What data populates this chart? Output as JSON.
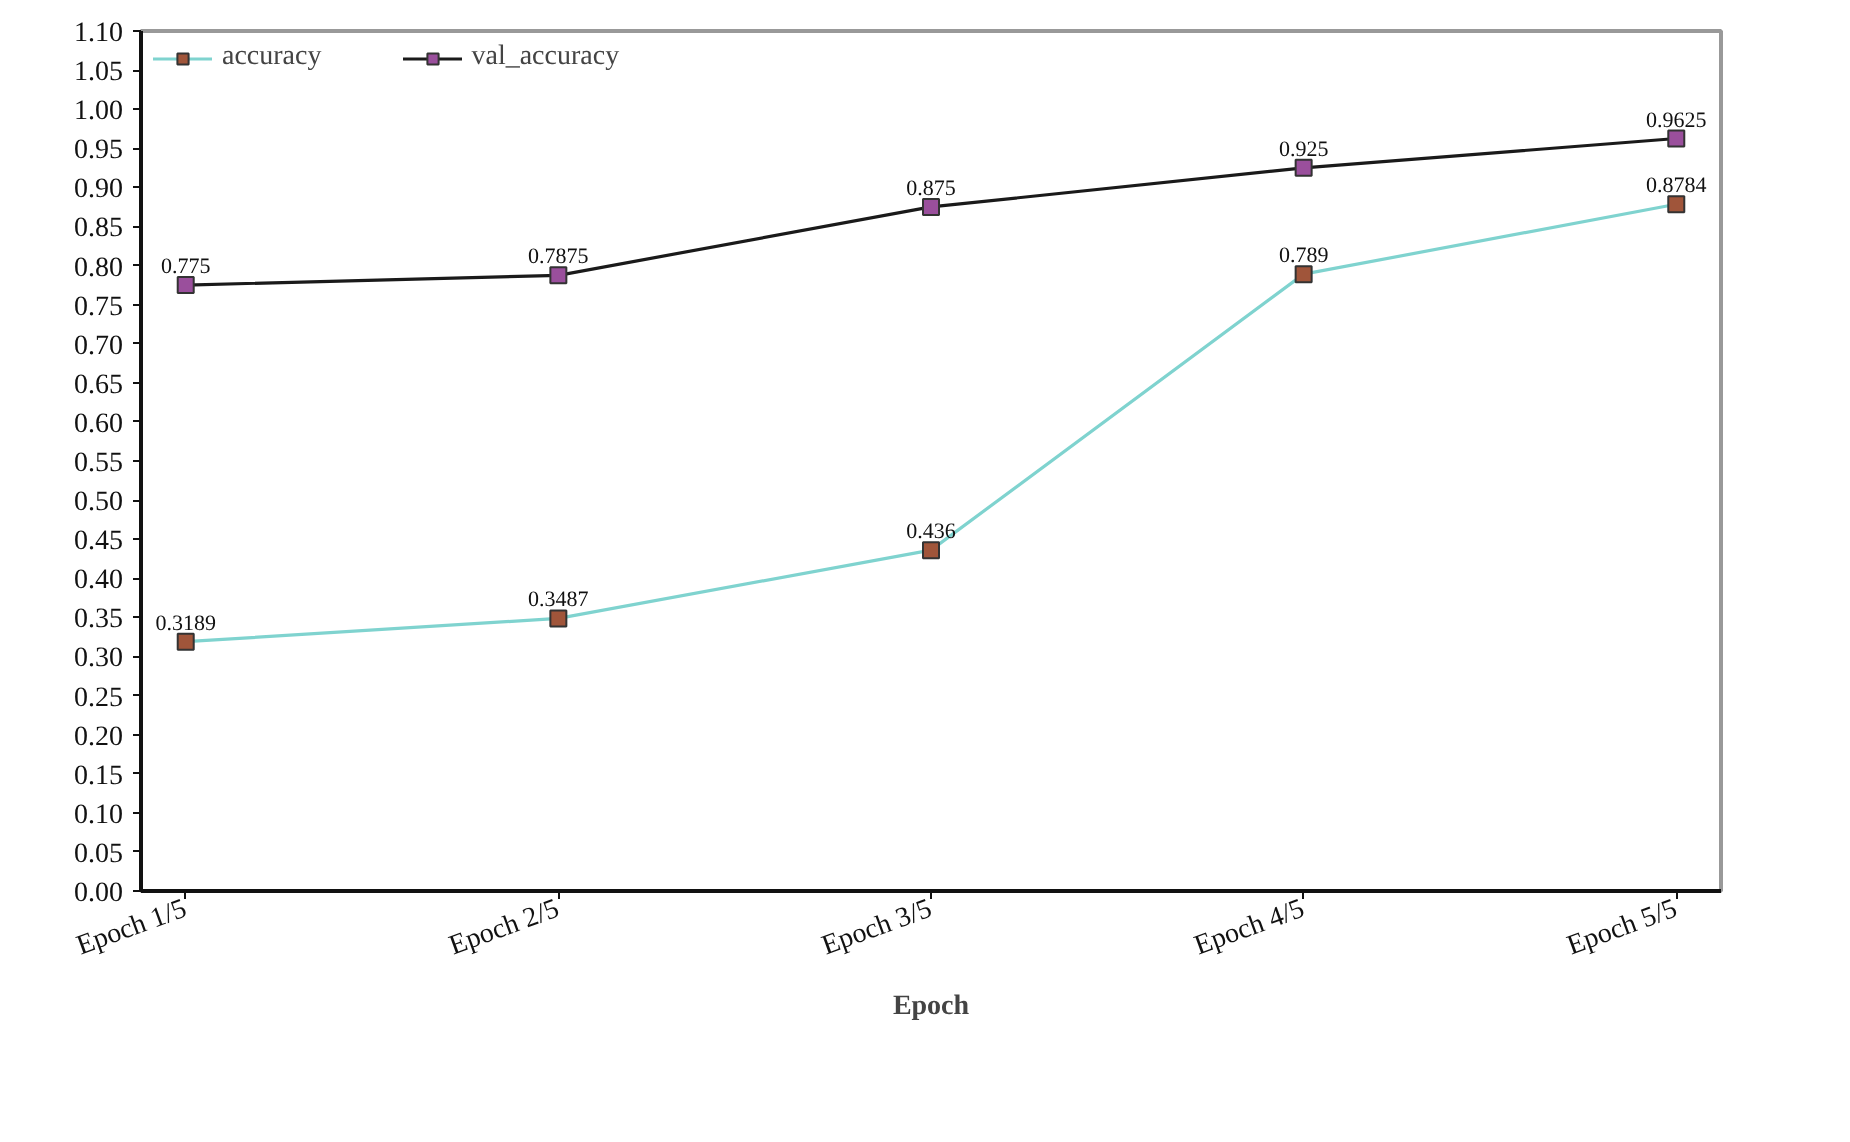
{
  "chart_data": {
    "type": "line",
    "xlabel": "Epoch",
    "categories": [
      "Epoch 1/5",
      "Epoch 2/5",
      "Epoch 3/5",
      "Epoch 4/5",
      "Epoch 5/5"
    ],
    "series": [
      {
        "name": "accuracy",
        "color": "#7fd3cf",
        "colors": [
          "#a0553a",
          "#a0553a",
          "#a0553a",
          "#a0553a",
          "#a0553a"
        ],
        "values": [
          0.3189,
          0.3487,
          0.436,
          0.789,
          0.8784
        ]
      },
      {
        "name": "val_accuracy",
        "color": "#1a1a1a",
        "colors": [
          "#9a4f9c",
          "#9a4f9c",
          "#9a4f9c",
          "#9a4f9c",
          "#9a4f9c"
        ],
        "values": [
          0.775,
          0.7875,
          0.875,
          0.925,
          0.9625
        ]
      }
    ],
    "ylim": [
      0,
      1.1
    ],
    "yticks": [
      "0.00",
      "0.05",
      "0.10",
      "0.15",
      "0.20",
      "0.25",
      "0.30",
      "0.35",
      "0.40",
      "0.45",
      "0.50",
      "0.55",
      "0.60",
      "0.65",
      "0.70",
      "0.75",
      "0.80",
      "0.85",
      "0.90",
      "0.95",
      "1.00",
      "1.05",
      "1.10"
    ],
    "data_labels": true,
    "grid": false,
    "legend": "top left",
    "marker": "square",
    "line_style": "solid"
  }
}
